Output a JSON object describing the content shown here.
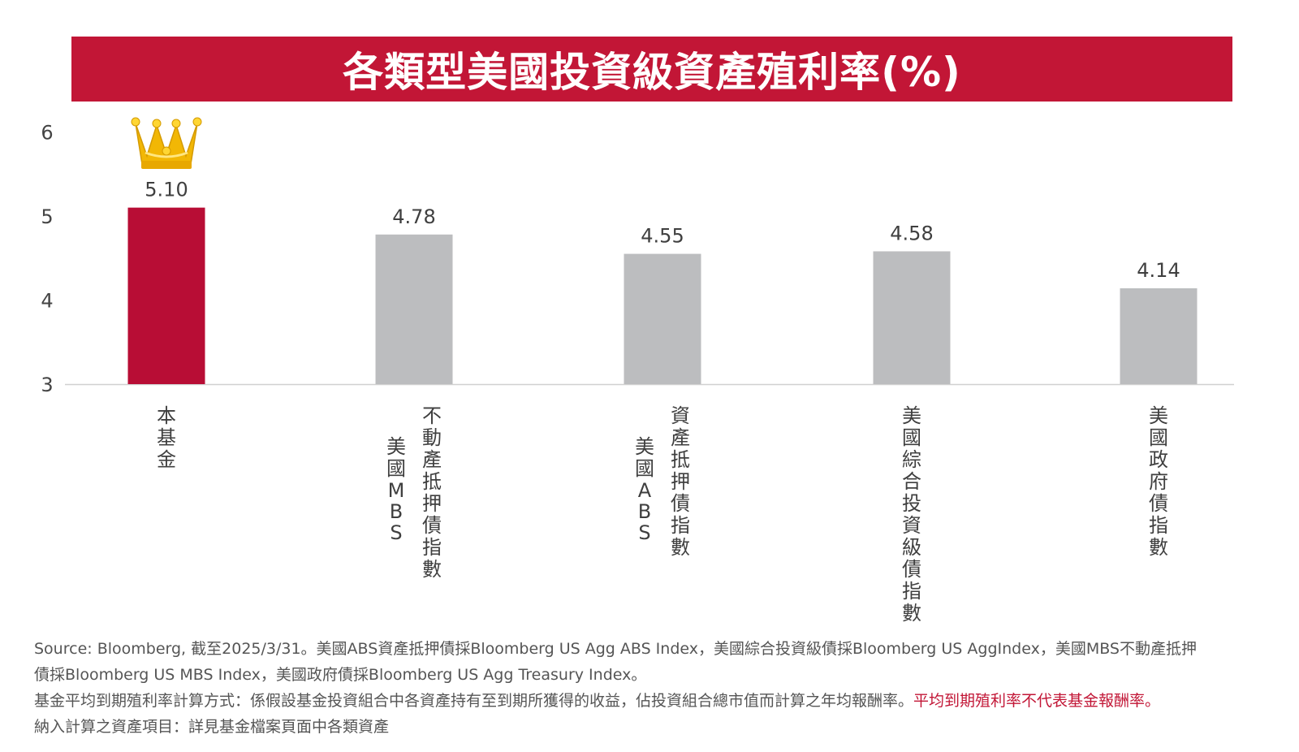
{
  "title": "各類型美國投資級資產殖利率(%)",
  "colors": {
    "banner": "#c21636",
    "highlight_bar": "#b80d35",
    "other_bar": "#bcbdbf",
    "crown": "#f2b705",
    "disclaimer_red": "#c21636"
  },
  "chart_data": {
    "type": "bar",
    "title": "各類型美國投資級資產殖利率(%)",
    "categories": [
      "本基金",
      "美國MBS不動產抵押債指數",
      "美國ABS資產抵押債指數",
      "美國綜合投資級債指數",
      "美國政府債指數"
    ],
    "category_label_columns": [
      [
        "本基金"
      ],
      [
        "美國MBS",
        "不動產抵押債指數"
      ],
      [
        "美國ABS",
        "資產抵押債指數"
      ],
      [
        "美國綜合投資級債指數"
      ],
      [
        "美國政府債指數"
      ]
    ],
    "values": [
      5.1,
      4.78,
      4.55,
      4.58,
      4.14
    ],
    "value_labels": [
      "5.10",
      "4.78",
      "4.55",
      "4.58",
      "4.14"
    ],
    "highlight_index": 0,
    "highlight_icon": "crown-icon",
    "ylim": [
      3,
      6
    ],
    "yticks": [
      "3",
      "4",
      "5",
      "6"
    ],
    "grid": false,
    "xlabel": "",
    "ylabel": ""
  },
  "footer": {
    "line1": "Source: Bloomberg, 截至2025/3/31。美國ABS資產抵押債採Bloomberg US Agg ABS Index，美國綜合投資級債採Bloomberg US AggIndex，美國MBS不動產抵押",
    "line2": "債採Bloomberg US MBS Index，美國政府債採Bloomberg US Agg Treasury Index。",
    "line3_main": " 基金平均到期殖利率計算方式：係假設基金投資組合中各資產持有至到期所獲得的收益，佔投資組合總市值而計算之年均報酬率。",
    "line3_red": "平均到期殖利率不代表基金報酬率。",
    "line4": "納入計算之資產項目：詳見基金檔案頁面中各類資產"
  }
}
